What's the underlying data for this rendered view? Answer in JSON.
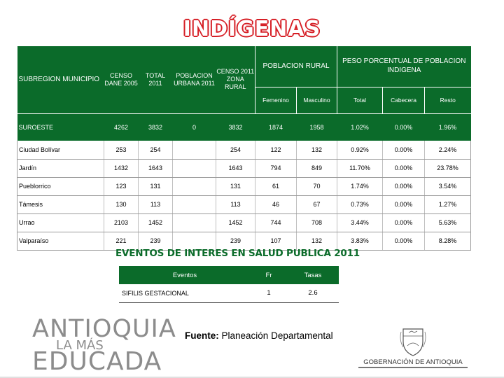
{
  "title": "INDÍGENAS",
  "main_table": {
    "headers": {
      "subregion": "SUBREGION MUNICIPIO",
      "censo": "CENSO DANE 2005",
      "total": "TOTAL 2011",
      "urbana": "POBLACION URBANA 2011",
      "zona_rural": "CENSO 2011 ZONA RURAL",
      "poblacion_rural": "POBLACION RURAL",
      "peso": "PESO PORCENTUAL DE POBLACION INDIGENA",
      "femenino": "Femenino",
      "masculino": "Masculino",
      "total_pct": "Total",
      "cabecera": "Cabecera",
      "resto": "Resto"
    },
    "summary": {
      "name": "SUROESTE",
      "censo": "4262",
      "total": "3832",
      "urbana": "0",
      "rural": "3832",
      "femenino": "1874",
      "masculino": "1958",
      "total_pct": "1.02%",
      "cabecera": "0.00%",
      "resto": "1.96%"
    },
    "rows": [
      {
        "name": "Ciudad Bolívar",
        "censo": "253",
        "total": "254",
        "urbana": "",
        "rural": "254",
        "femenino": "122",
        "masculino": "132",
        "total_pct": "0.92%",
        "cabecera": "0.00%",
        "resto": "2.24%"
      },
      {
        "name": "Jardín",
        "censo": "1432",
        "total": "1643",
        "urbana": "",
        "rural": "1643",
        "femenino": "794",
        "masculino": "849",
        "total_pct": "11.70%",
        "cabecera": "0.00%",
        "resto": "23.78%"
      },
      {
        "name": "Pueblorrico",
        "censo": "123",
        "total": "131",
        "urbana": "",
        "rural": "131",
        "femenino": "61",
        "masculino": "70",
        "total_pct": "1.74%",
        "cabecera": "0.00%",
        "resto": "3.54%"
      },
      {
        "name": "Támesis",
        "censo": "130",
        "total": "113",
        "urbana": "",
        "rural": "113",
        "femenino": "46",
        "masculino": "67",
        "total_pct": "0.73%",
        "cabecera": "0.00%",
        "resto": "1.27%"
      },
      {
        "name": "Urrao",
        "censo": "2103",
        "total": "1452",
        "urbana": "",
        "rural": "1452",
        "femenino": "744",
        "masculino": "708",
        "total_pct": "3.44%",
        "cabecera": "0.00%",
        "resto": "5.63%"
      },
      {
        "name": "Valparaíso",
        "censo": "221",
        "total": "239",
        "urbana": "",
        "rural": "239",
        "femenino": "107",
        "masculino": "132",
        "total_pct": "3.83%",
        "cabecera": "0.00%",
        "resto": "8.28%"
      }
    ]
  },
  "events_section": {
    "title": "EVENTOS DE INTERES EN SALUD PUBLICA 2011",
    "headers": {
      "eventos": "Eventos",
      "fr": "Fr",
      "tasas": "Tasas"
    },
    "rows": [
      {
        "evento": "SIFILIS GESTACIONAL",
        "fr": "1",
        "tasa": "2.6"
      }
    ]
  },
  "source": {
    "label": "Fuente:",
    "text": "Planeación Departamental"
  },
  "logo_left": {
    "line1": "ANTIOQUIA",
    "line2": "LA MÁS",
    "line3": "EDUCADA"
  },
  "logo_right": {
    "text": "GOBERNACIÓN DE ANTIOQUIA"
  },
  "colors": {
    "header_green": "#0b6b2a",
    "title_red": "#d61f26",
    "logo_gray": "#8c8c8c"
  }
}
